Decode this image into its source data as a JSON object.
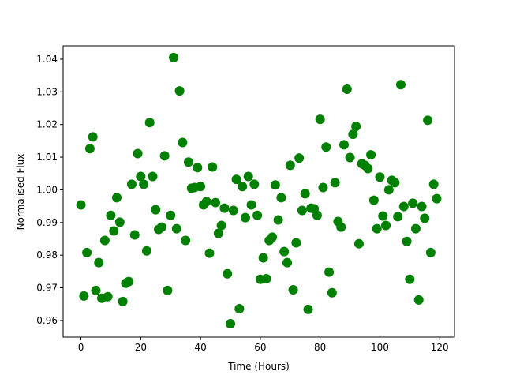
{
  "chart_data": {
    "type": "scatter",
    "x_label": "Time (Hours)",
    "y_label": "Normalised Flux",
    "color": "#008000",
    "x": [
      0,
      1,
      2,
      3,
      4,
      5,
      6,
      7,
      8,
      9,
      10,
      11,
      12,
      13,
      14,
      15,
      16,
      17,
      18,
      19,
      20,
      21,
      22,
      23,
      24,
      25,
      26,
      27,
      28,
      29,
      30,
      31,
      32,
      33,
      34,
      35,
      36,
      37,
      38,
      39,
      40,
      41,
      42,
      43,
      44,
      45,
      46,
      47,
      48,
      49,
      50,
      51,
      52,
      53,
      54,
      55,
      56,
      57,
      58,
      59,
      60,
      61,
      62,
      63,
      64,
      65,
      66,
      67,
      68,
      69,
      70,
      71,
      72,
      73,
      74,
      75,
      76,
      77,
      78,
      79,
      80,
      81,
      82,
      83,
      84,
      85,
      86,
      87,
      88,
      89,
      90,
      91,
      92,
      93,
      94,
      95,
      96,
      97,
      98,
      99,
      100,
      101,
      102,
      103,
      104,
      105,
      106,
      107,
      108,
      109,
      110,
      111,
      112,
      113,
      114,
      115,
      116,
      117,
      118,
      119
    ],
    "values": [
      0.9954,
      0.9675,
      0.9808,
      1.0126,
      1.0162,
      0.9692,
      0.9777,
      0.9668,
      0.9845,
      0.9673,
      0.9922,
      0.9874,
      0.9976,
      0.9901,
      0.9658,
      0.9714,
      0.9719,
      1.0017,
      0.9862,
      1.0111,
      1.0041,
      1.0017,
      0.9813,
      1.0206,
      1.0041,
      0.9939,
      0.9879,
      0.9886,
      1.0104,
      0.9692,
      0.9922,
      1.0405,
      0.9881,
      1.0303,
      1.0145,
      0.9845,
      1.0085,
      1.0005,
      1.0007,
      1.0068,
      1.001,
      0.9954,
      0.9964,
      0.9806,
      1.007,
      0.9961,
      0.9867,
      0.9891,
      0.9944,
      0.9743,
      0.959,
      0.9937,
      1.0032,
      0.9636,
      1.001,
      0.9915,
      1.0041,
      0.9954,
      1.0017,
      0.9922,
      0.9726,
      0.9792,
      0.9728,
      0.9845,
      0.9855,
      1.0015,
      0.9908,
      0.9976,
      0.9811,
      0.9777,
      1.0075,
      0.9694,
      0.9838,
      1.0097,
      0.9937,
      0.9988,
      0.9634,
      0.9944,
      0.9942,
      0.9922,
      1.0216,
      1.0007,
      1.0131,
      0.9748,
      0.9685,
      1.0022,
      0.9903,
      0.9886,
      1.0138,
      1.0308,
      1.0099,
      1.017,
      1.0194,
      0.9835,
      1.008,
      1.0075,
      1.0065,
      1.0107,
      0.9968,
      0.9881,
      1.0039,
      0.992,
      0.9891,
      1.0,
      1.0029,
      1.0022,
      0.9918,
      1.0322,
      0.9949,
      0.9842,
      0.9726,
      0.9959,
      0.9881,
      0.9663,
      0.9949,
      0.9913,
      1.0213,
      0.9808,
      1.0017,
      0.9973
    ],
    "xlim": [
      -5.95,
      124.95
    ],
    "xticks": [
      0,
      20,
      40,
      60,
      80,
      100,
      120
    ],
    "ylim": [
      0.9549,
      1.0441
    ],
    "yticks": [
      0.96,
      0.97,
      0.98,
      0.99,
      {
        "value": 1.0,
        "label": "1.00"
      },
      1.01,
      1.02,
      1.03,
      1.04
    ]
  }
}
